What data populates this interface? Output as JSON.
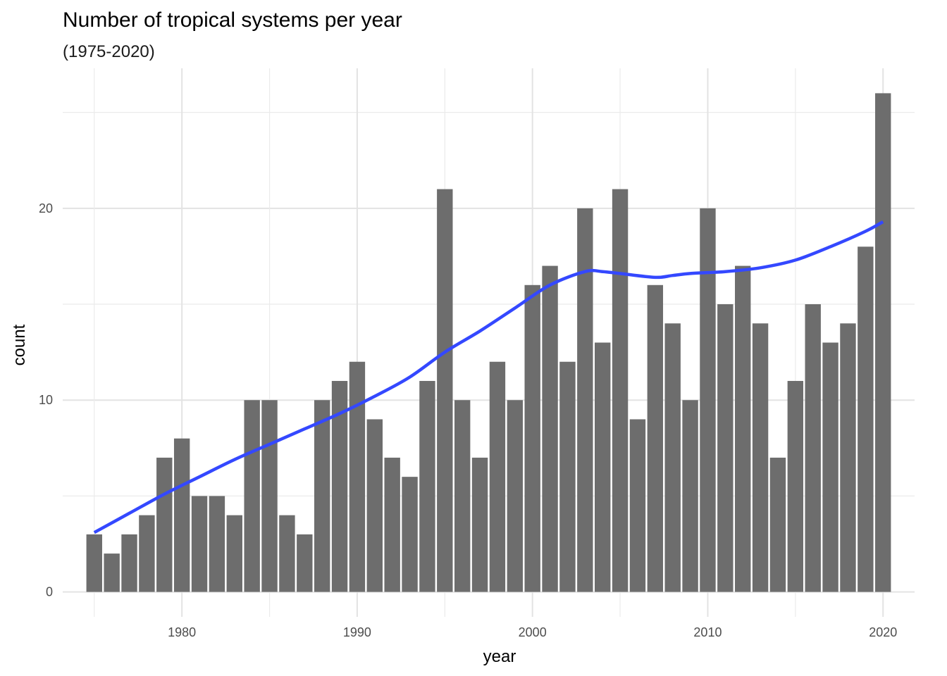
{
  "chart_data": {
    "type": "bar",
    "title": "Number of tropical systems per year",
    "subtitle": "(1975-2020)",
    "xlabel": "year",
    "ylabel": "count",
    "xlim": [
      1973.2,
      2021.8
    ],
    "ylim": [
      -1.3,
      27.3
    ],
    "x_ticks": [
      1980,
      1990,
      2000,
      2010,
      2020
    ],
    "y_ticks": [
      0,
      10,
      20
    ],
    "y_minor_ticks": [
      5,
      15,
      25
    ],
    "grid": true,
    "bar_color": "#6d6d6d",
    "smooth_color": "#3448ff",
    "series": [
      {
        "name": "count",
        "x": [
          1975,
          1976,
          1977,
          1978,
          1979,
          1980,
          1981,
          1982,
          1983,
          1984,
          1985,
          1986,
          1987,
          1988,
          1989,
          1990,
          1991,
          1992,
          1993,
          1994,
          1995,
          1996,
          1997,
          1998,
          1999,
          2000,
          2001,
          2002,
          2003,
          2004,
          2005,
          2006,
          2007,
          2008,
          2009,
          2010,
          2011,
          2012,
          2013,
          2014,
          2015,
          2016,
          2017,
          2018,
          2019,
          2020
        ],
        "values": [
          3,
          2,
          3,
          4,
          7,
          8,
          5,
          5,
          4,
          10,
          10,
          4,
          3,
          10,
          11,
          12,
          9,
          7,
          6,
          11,
          21,
          10,
          7,
          12,
          10,
          16,
          17,
          12,
          20,
          13,
          21,
          9,
          16,
          14,
          10,
          20,
          15,
          17,
          14,
          7,
          11,
          15,
          13,
          14,
          18,
          26
        ]
      },
      {
        "name": "smooth trend",
        "x": [
          1975,
          1977,
          1979,
          1981,
          1983,
          1985,
          1987,
          1989,
          1991,
          1993,
          1995,
          1997,
          1999,
          2001,
          2003,
          2004,
          2005,
          2007,
          2008,
          2009,
          2011,
          2013,
          2015,
          2017,
          2019,
          2020
        ],
        "values": [
          3.1,
          4.1,
          5.1,
          6.0,
          6.9,
          7.7,
          8.5,
          9.3,
          10.2,
          11.2,
          12.5,
          13.6,
          14.8,
          16.0,
          16.7,
          16.7,
          16.6,
          16.4,
          16.5,
          16.6,
          16.7,
          16.9,
          17.3,
          18.0,
          18.8,
          19.3
        ]
      }
    ]
  }
}
